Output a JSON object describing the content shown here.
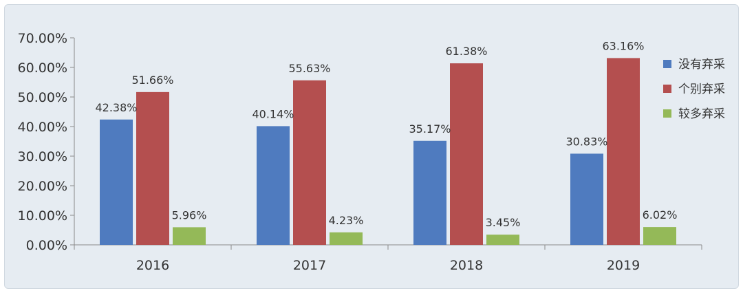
{
  "chart_data": {
    "type": "bar",
    "categories": [
      "2016",
      "2017",
      "2018",
      "2019"
    ],
    "series": [
      {
        "name": "没有弃采",
        "color": "#4f7bbf",
        "values": [
          42.38,
          40.14,
          35.17,
          30.83
        ],
        "labels": [
          "42.38%",
          "40.14%",
          "35.17%",
          "30.83%"
        ]
      },
      {
        "name": "个别弃采",
        "color": "#b44f4f",
        "values": [
          51.66,
          55.63,
          61.38,
          63.16
        ],
        "labels": [
          "51.66%",
          "55.63%",
          "61.38%",
          "63.16%"
        ]
      },
      {
        "name": "较多弃采",
        "color": "#94b958",
        "values": [
          5.96,
          4.23,
          3.45,
          6.02
        ],
        "labels": [
          "5.96%",
          "4.23%",
          "3.45%",
          "6.02%"
        ]
      }
    ],
    "yticks": [
      "0.00%",
      "10.00%",
      "20.00%",
      "30.00%",
      "40.00%",
      "50.00%",
      "60.00%",
      "70.00%"
    ],
    "ylim": [
      0,
      70
    ],
    "grid": false,
    "legend_position": "right"
  }
}
